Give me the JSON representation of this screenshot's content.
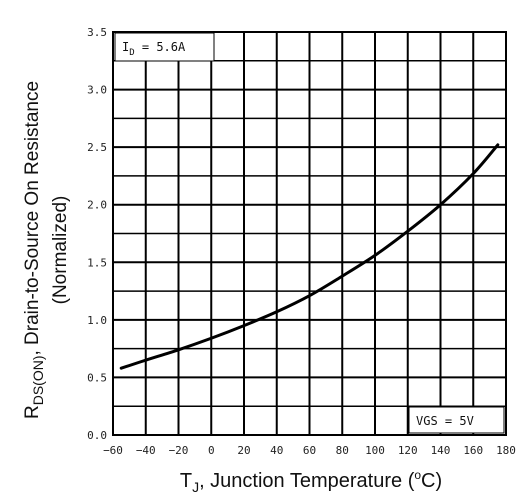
{
  "chart_data": {
    "type": "line",
    "xlabel": {
      "main": "T",
      "sub": "J",
      "rest": ", Junction Temperature (",
      "deg": "o",
      "unit": "C)"
    },
    "ylabel": {
      "line1_main": "R",
      "line1_sub": "DS(ON)",
      "line1_rest": ", Drain-to-Source On Resistance",
      "line2": "(Normalized)"
    },
    "xlim": [
      -60,
      180
    ],
    "ylim": [
      0.0,
      3.5
    ],
    "x_ticks": [
      -60,
      -40,
      -20,
      0,
      20,
      40,
      60,
      80,
      100,
      120,
      140,
      160,
      180
    ],
    "y_ticks": [
      "0.0",
      "0.5",
      "1.0",
      "1.5",
      "2.0",
      "2.5",
      "3.0",
      "3.5"
    ],
    "grid": true,
    "annotations": {
      "id_label": {
        "main": "I",
        "sub": "D",
        "rest": " = 5.6A"
      },
      "vgs_label": "VGS = 5V"
    },
    "series": [
      {
        "x": [
          -55,
          -40,
          -20,
          0,
          20,
          40,
          60,
          80,
          100,
          120,
          140,
          160,
          175
        ],
        "y": [
          0.58,
          0.65,
          0.74,
          0.84,
          0.95,
          1.07,
          1.21,
          1.38,
          1.56,
          1.77,
          2.0,
          2.27,
          2.52
        ]
      }
    ],
    "colors": {
      "line": "#000000",
      "grid": "#000000"
    }
  }
}
